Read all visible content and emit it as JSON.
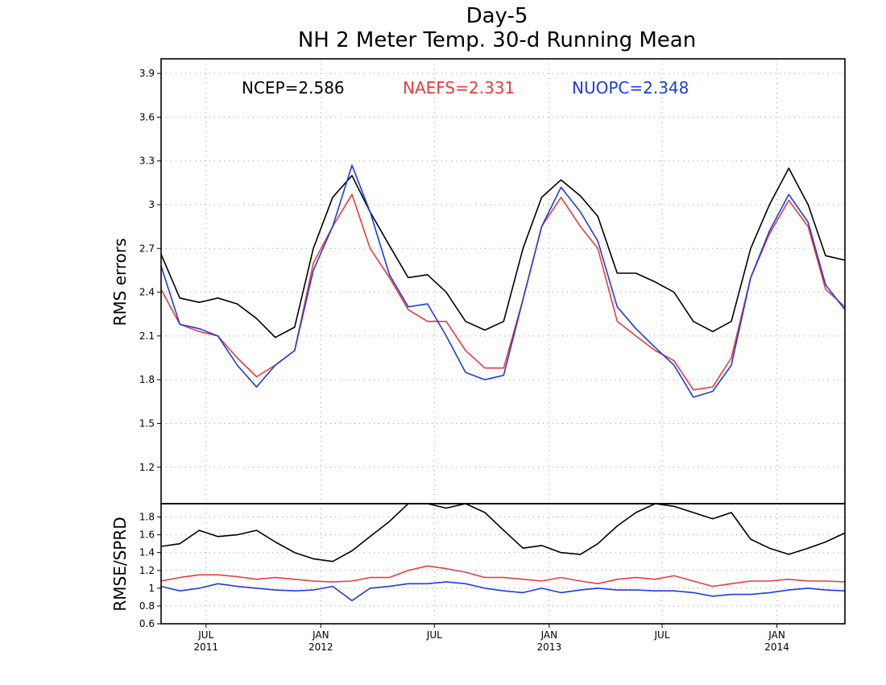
{
  "title_line1": "Day-5",
  "title_line2": "NH 2 Meter Temp. 30-d Running Mean",
  "legend": [
    {
      "label": "NCEP=2.586",
      "color": "#000000"
    },
    {
      "label": "NAEFS=2.331",
      "color": "#e83c3c"
    },
    {
      "label": "NUOPC=2.348",
      "color": "#1e3cdc"
    }
  ],
  "chart_data": [
    {
      "type": "line",
      "ylabel": "RMS errors",
      "ylim": [
        0.95,
        4.0
      ],
      "xlim": [
        "2011-04-20",
        "2014-04-20"
      ],
      "yticks": [
        "1.2",
        "1.5",
        "1.8",
        "2.1",
        "2.4",
        "2.7",
        "3",
        "3.3",
        "3.6",
        "3.9"
      ],
      "grid": true,
      "legend_position": "top",
      "x": [
        "2011-04-20",
        "2011-05-20",
        "2011-06-20",
        "2011-07-20",
        "2011-08-20",
        "2011-09-20",
        "2011-10-20",
        "2011-11-20",
        "2011-12-20",
        "2012-01-20",
        "2012-02-20",
        "2012-03-20",
        "2012-04-20",
        "2012-05-20",
        "2012-06-20",
        "2012-07-20",
        "2012-08-20",
        "2012-09-20",
        "2012-10-20",
        "2012-11-20",
        "2012-12-20",
        "2013-01-20",
        "2013-02-20",
        "2013-03-20",
        "2013-04-20",
        "2013-05-20",
        "2013-06-20",
        "2013-07-20",
        "2013-08-20",
        "2013-09-20",
        "2013-10-20",
        "2013-11-20",
        "2013-12-20",
        "2014-01-20",
        "2014-02-20",
        "2014-03-20",
        "2014-04-20"
      ],
      "series": [
        {
          "name": "NCEP",
          "color": "#000000",
          "values": [
            2.66,
            2.36,
            2.33,
            2.36,
            2.32,
            2.22,
            2.09,
            2.16,
            2.7,
            3.05,
            3.2,
            2.95,
            2.72,
            2.5,
            2.52,
            2.4,
            2.2,
            2.14,
            2.2,
            2.7,
            3.05,
            3.17,
            3.06,
            2.92,
            2.53,
            2.53,
            2.47,
            2.4,
            2.2,
            2.13,
            2.2,
            2.7,
            3.0,
            3.25,
            3.0,
            2.65,
            2.62
          ]
        },
        {
          "name": "NAEFS",
          "color": "#e83c3c",
          "values": [
            2.42,
            2.18,
            2.13,
            2.1,
            1.95,
            1.82,
            1.9,
            2.0,
            2.6,
            2.85,
            3.07,
            2.7,
            2.5,
            2.28,
            2.2,
            2.2,
            2.0,
            1.88,
            1.88,
            2.35,
            2.85,
            3.05,
            2.85,
            2.7,
            2.2,
            2.1,
            2.0,
            1.93,
            1.73,
            1.75,
            1.95,
            2.5,
            2.8,
            3.03,
            2.85,
            2.42,
            2.3
          ]
        },
        {
          "name": "NUOPC",
          "color": "#1e3cdc",
          "values": [
            2.58,
            2.18,
            2.15,
            2.1,
            1.9,
            1.75,
            1.9,
            2.0,
            2.55,
            2.85,
            3.27,
            2.95,
            2.52,
            2.3,
            2.32,
            2.1,
            1.85,
            1.8,
            1.83,
            2.35,
            2.85,
            3.12,
            2.95,
            2.75,
            2.3,
            2.15,
            2.02,
            1.9,
            1.68,
            1.72,
            1.9,
            2.5,
            2.82,
            3.07,
            2.88,
            2.45,
            2.28
          ]
        }
      ]
    },
    {
      "type": "line",
      "ylabel": "RMSE/SPRD",
      "ylim": [
        0.6,
        1.95
      ],
      "yticks": [
        "0.6",
        "0.8",
        "1",
        "1.2",
        "1.4",
        "1.6",
        "1.8"
      ],
      "xticks": [
        {
          "date": "2011-07-01",
          "label": "JUL",
          "year": "2011"
        },
        {
          "date": "2012-01-01",
          "label": "JAN",
          "year": "2012"
        },
        {
          "date": "2012-07-01",
          "label": "JUL",
          "year": ""
        },
        {
          "date": "2013-01-01",
          "label": "JAN",
          "year": "2013"
        },
        {
          "date": "2013-07-01",
          "label": "JUL",
          "year": ""
        },
        {
          "date": "2014-01-01",
          "label": "JAN",
          "year": "2014"
        }
      ],
      "x": [
        "2011-04-20",
        "2011-05-20",
        "2011-06-20",
        "2011-07-20",
        "2011-08-20",
        "2011-09-20",
        "2011-10-20",
        "2011-11-20",
        "2011-12-20",
        "2012-01-20",
        "2012-02-20",
        "2012-03-20",
        "2012-04-20",
        "2012-05-20",
        "2012-06-20",
        "2012-07-20",
        "2012-08-20",
        "2012-09-20",
        "2012-10-20",
        "2012-11-20",
        "2012-12-20",
        "2013-01-20",
        "2013-02-20",
        "2013-03-20",
        "2013-04-20",
        "2013-05-20",
        "2013-06-20",
        "2013-07-20",
        "2013-08-20",
        "2013-09-20",
        "2013-10-20",
        "2013-11-20",
        "2013-12-20",
        "2014-01-20",
        "2014-02-20",
        "2014-03-20",
        "2014-04-20"
      ],
      "series": [
        {
          "name": "NCEP",
          "color": "#000000",
          "values": [
            1.47,
            1.5,
            1.65,
            1.58,
            1.6,
            1.65,
            1.52,
            1.4,
            1.33,
            1.3,
            1.42,
            1.58,
            1.75,
            1.95,
            1.95,
            1.9,
            1.95,
            1.85,
            1.65,
            1.45,
            1.48,
            1.4,
            1.38,
            1.5,
            1.7,
            1.85,
            1.95,
            1.92,
            1.85,
            1.78,
            1.85,
            1.55,
            1.45,
            1.38,
            1.45,
            1.52,
            1.62
          ]
        },
        {
          "name": "NAEFS",
          "color": "#e83c3c",
          "values": [
            1.08,
            1.12,
            1.15,
            1.15,
            1.13,
            1.1,
            1.12,
            1.1,
            1.08,
            1.07,
            1.08,
            1.12,
            1.12,
            1.2,
            1.25,
            1.22,
            1.18,
            1.12,
            1.12,
            1.1,
            1.08,
            1.12,
            1.08,
            1.05,
            1.1,
            1.12,
            1.1,
            1.14,
            1.08,
            1.02,
            1.05,
            1.08,
            1.08,
            1.1,
            1.08,
            1.08,
            1.07
          ]
        },
        {
          "name": "NUOPC",
          "color": "#1e3cdc",
          "values": [
            1.02,
            0.97,
            1.0,
            1.05,
            1.02,
            1.0,
            0.98,
            0.97,
            0.98,
            1.02,
            0.86,
            1.0,
            1.02,
            1.05,
            1.05,
            1.07,
            1.05,
            1.0,
            0.97,
            0.95,
            1.0,
            0.95,
            0.98,
            1.0,
            0.98,
            0.98,
            0.97,
            0.97,
            0.95,
            0.91,
            0.93,
            0.93,
            0.95,
            0.98,
            1.0,
            0.98,
            0.97
          ]
        }
      ]
    }
  ]
}
